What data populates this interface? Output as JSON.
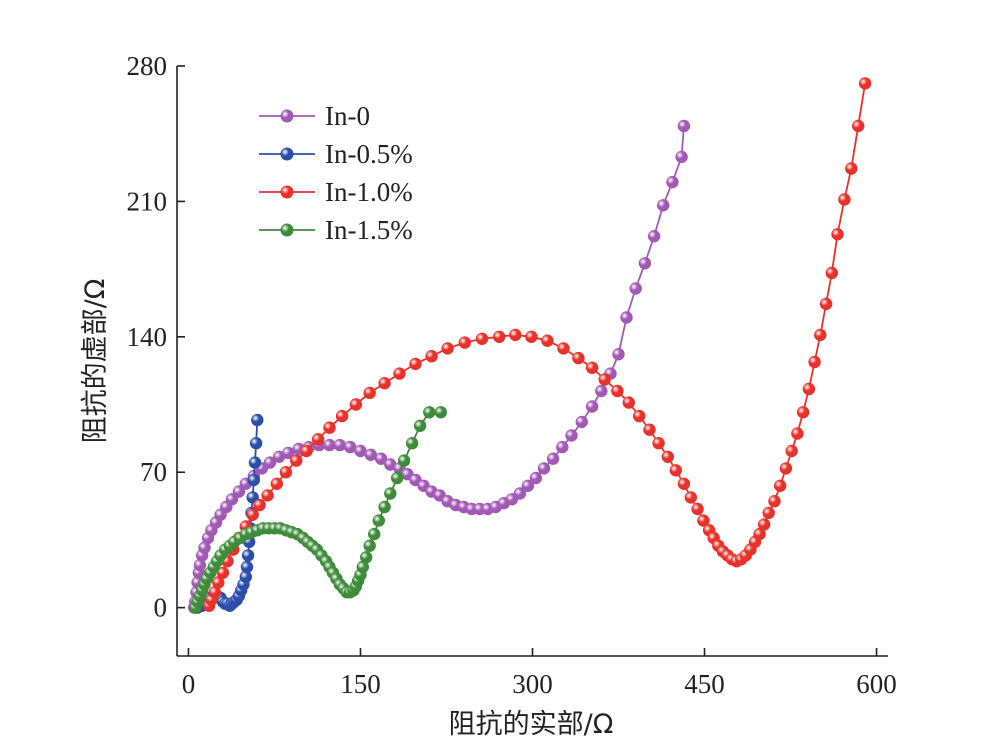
{
  "chart_data": {
    "type": "scatter",
    "title": "",
    "xlabel": "阻抗的实部/Ω",
    "ylabel": "阻抗的虚部/Ω",
    "xlim": [
      -10,
      610
    ],
    "ylim": [
      -25,
      280
    ],
    "xticks": [
      0,
      150,
      300,
      450,
      600
    ],
    "yticks": [
      0,
      70,
      140,
      210,
      280
    ],
    "xtick_labels": [
      "0",
      "150",
      "300",
      "450",
      "600"
    ],
    "ytick_labels": [
      "0",
      "70",
      "140",
      "210",
      "280"
    ],
    "grid": false,
    "legend_position": "top-left",
    "series": [
      {
        "name": "In-0",
        "color": "#a259b5",
        "points": [
          [
            5,
            0
          ],
          [
            6,
            3
          ],
          [
            7,
            8
          ],
          [
            8,
            13
          ],
          [
            9,
            18
          ],
          [
            10,
            22
          ],
          [
            12,
            27
          ],
          [
            14,
            31
          ],
          [
            17,
            36
          ],
          [
            20,
            40
          ],
          [
            24,
            44
          ],
          [
            28,
            48
          ],
          [
            33,
            52
          ],
          [
            38,
            56
          ],
          [
            44,
            60
          ],
          [
            50,
            64
          ],
          [
            57,
            68
          ],
          [
            64,
            72
          ],
          [
            71,
            75
          ],
          [
            79,
            78
          ],
          [
            87,
            80
          ],
          [
            96,
            82
          ],
          [
            105,
            83
          ],
          [
            114,
            84
          ],
          [
            123,
            84
          ],
          [
            132,
            84
          ],
          [
            141,
            83
          ],
          [
            150,
            81
          ],
          [
            159,
            79
          ],
          [
            168,
            77
          ],
          [
            176,
            74
          ],
          [
            184,
            72
          ],
          [
            191,
            69
          ],
          [
            198,
            66
          ],
          [
            205,
            63
          ],
          [
            212,
            60
          ],
          [
            219,
            58
          ],
          [
            226,
            55
          ],
          [
            233,
            53
          ],
          [
            240,
            52
          ],
          [
            247,
            51
          ],
          [
            254,
            51
          ],
          [
            261,
            51
          ],
          [
            268,
            52
          ],
          [
            275,
            54
          ],
          [
            282,
            56
          ],
          [
            289,
            59
          ],
          [
            296,
            63
          ],
          [
            303,
            67
          ],
          [
            310,
            72
          ],
          [
            318,
            77
          ],
          [
            326,
            83
          ],
          [
            334,
            89
          ],
          [
            343,
            96
          ],
          [
            352,
            104
          ],
          [
            360,
            112
          ],
          [
            368,
            121
          ],
          [
            375,
            131
          ],
          [
            382,
            150
          ],
          [
            390,
            165
          ],
          [
            398,
            178
          ],
          [
            406,
            192
          ],
          [
            414,
            208
          ],
          [
            422,
            220
          ],
          [
            430,
            233
          ],
          [
            432,
            249
          ]
        ]
      },
      {
        "name": "In-0.5%",
        "color": "#2b4fa8",
        "points": [
          [
            8,
            0
          ],
          [
            10,
            1
          ],
          [
            12,
            1
          ],
          [
            14,
            2
          ],
          [
            16,
            4
          ],
          [
            19,
            5
          ],
          [
            22,
            6
          ],
          [
            25,
            6
          ],
          [
            28,
            5
          ],
          [
            30,
            3
          ],
          [
            32,
            2
          ],
          [
            34,
            2
          ],
          [
            36,
            1
          ],
          [
            38,
            2
          ],
          [
            40,
            3
          ],
          [
            42,
            4
          ],
          [
            44,
            6
          ],
          [
            46,
            9
          ],
          [
            48,
            12
          ],
          [
            50,
            16
          ],
          [
            51,
            21
          ],
          [
            52,
            27
          ],
          [
            53,
            34
          ],
          [
            54,
            41
          ],
          [
            55,
            49
          ],
          [
            56,
            57
          ],
          [
            57,
            66
          ],
          [
            58,
            75
          ],
          [
            59,
            85
          ],
          [
            60,
            97
          ]
        ]
      },
      {
        "name": "In-1.0%",
        "color": "#e8312a",
        "points": [
          [
            18,
            1
          ],
          [
            20,
            4
          ],
          [
            23,
            8
          ],
          [
            26,
            13
          ],
          [
            30,
            18
          ],
          [
            34,
            24
          ],
          [
            39,
            30
          ],
          [
            44,
            36
          ],
          [
            50,
            42
          ],
          [
            56,
            48
          ],
          [
            62,
            53
          ],
          [
            69,
            58
          ],
          [
            77,
            64
          ],
          [
            85,
            70
          ],
          [
            94,
            76
          ],
          [
            103,
            81
          ],
          [
            113,
            87
          ],
          [
            123,
            93
          ],
          [
            134,
            99
          ],
          [
            146,
            105
          ],
          [
            158,
            111
          ],
          [
            171,
            116
          ],
          [
            184,
            121
          ],
          [
            198,
            126
          ],
          [
            212,
            130
          ],
          [
            226,
            134
          ],
          [
            241,
            137
          ],
          [
            256,
            139
          ],
          [
            271,
            140
          ],
          [
            285,
            141
          ],
          [
            299,
            140
          ],
          [
            313,
            138
          ],
          [
            327,
            134
          ],
          [
            340,
            129
          ],
          [
            352,
            124
          ],
          [
            363,
            118
          ],
          [
            374,
            112
          ],
          [
            384,
            106
          ],
          [
            393,
            99
          ],
          [
            402,
            92
          ],
          [
            410,
            85
          ],
          [
            418,
            78
          ],
          [
            425,
            71
          ],
          [
            432,
            64
          ],
          [
            438,
            57
          ],
          [
            444,
            51
          ],
          [
            449,
            45
          ],
          [
            454,
            40
          ],
          [
            458,
            36
          ],
          [
            462,
            32
          ],
          [
            466,
            29
          ],
          [
            470,
            27
          ],
          [
            474,
            25
          ],
          [
            478,
            24
          ],
          [
            482,
            25
          ],
          [
            486,
            27
          ],
          [
            490,
            30
          ],
          [
            494,
            34
          ],
          [
            498,
            38
          ],
          [
            502,
            43
          ],
          [
            506,
            49
          ],
          [
            511,
            55
          ],
          [
            516,
            63
          ],
          [
            521,
            72
          ],
          [
            526,
            81
          ],
          [
            531,
            90
          ],
          [
            536,
            101
          ],
          [
            541,
            113
          ],
          [
            546,
            127
          ],
          [
            551,
            141
          ],
          [
            556,
            157
          ],
          [
            561,
            173
          ],
          [
            566,
            193
          ],
          [
            572,
            211
          ],
          [
            578,
            227
          ],
          [
            584,
            249
          ],
          [
            590,
            271
          ]
        ]
      },
      {
        "name": "In-1.5%",
        "color": "#3e8c3a",
        "points": [
          [
            6,
            0
          ],
          [
            8,
            3
          ],
          [
            10,
            6
          ],
          [
            12,
            9
          ],
          [
            14,
            12
          ],
          [
            16,
            15
          ],
          [
            19,
            18
          ],
          [
            22,
            21
          ],
          [
            25,
            24
          ],
          [
            28,
            27
          ],
          [
            32,
            30
          ],
          [
            36,
            32
          ],
          [
            40,
            34
          ],
          [
            45,
            36
          ],
          [
            50,
            38
          ],
          [
            55,
            39
          ],
          [
            60,
            40
          ],
          [
            65,
            41
          ],
          [
            70,
            41
          ],
          [
            75,
            41
          ],
          [
            80,
            41
          ],
          [
            85,
            40
          ],
          [
            90,
            39
          ],
          [
            95,
            38
          ],
          [
            100,
            36
          ],
          [
            104,
            34
          ],
          [
            108,
            32
          ],
          [
            112,
            30
          ],
          [
            116,
            27
          ],
          [
            120,
            24
          ],
          [
            123,
            21
          ],
          [
            126,
            18
          ],
          [
            129,
            15
          ],
          [
            132,
            12
          ],
          [
            135,
            10
          ],
          [
            138,
            8
          ],
          [
            141,
            8
          ],
          [
            144,
            9
          ],
          [
            146,
            11
          ],
          [
            148,
            14
          ],
          [
            150,
            17
          ],
          [
            152,
            21
          ],
          [
            155,
            26
          ],
          [
            158,
            32
          ],
          [
            162,
            38
          ],
          [
            166,
            45
          ],
          [
            171,
            52
          ],
          [
            176,
            59
          ],
          [
            182,
            67
          ],
          [
            188,
            76
          ],
          [
            195,
            85
          ],
          [
            202,
            94
          ],
          [
            210,
            101
          ],
          [
            220,
            101
          ]
        ]
      }
    ]
  }
}
